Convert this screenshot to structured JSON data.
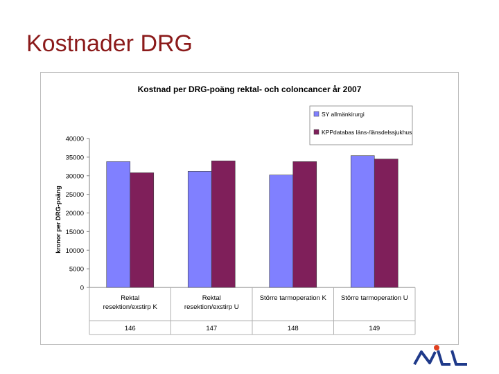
{
  "slide": {
    "title": "Kostnader DRG"
  },
  "chart_data": {
    "type": "bar",
    "title": "Kostnad per DRG-poäng rektal- och coloncancer år 2007",
    "ylabel": "kronor per DRG-poäng",
    "xlabel": "",
    "ylim": [
      0,
      40000
    ],
    "yticks": [
      0,
      5000,
      10000,
      15000,
      20000,
      25000,
      30000,
      35000,
      40000
    ],
    "categories": [
      "Rektal resektion/exstirp K",
      "Rektal resektion/exstirp U",
      "Större tarmoperation K",
      "Större tarmoperation U"
    ],
    "category_codes": [
      "146",
      "147",
      "148",
      "149"
    ],
    "series": [
      {
        "name": "SY allmänkirurgi",
        "color": "#8080ff",
        "values": [
          33800,
          31200,
          30200,
          35400
        ]
      },
      {
        "name": "KPPdatabas läns-/länsdelssjukhus",
        "color": "#7f1f5a",
        "values": [
          30800,
          34000,
          33800,
          34500
        ]
      }
    ],
    "grid": false,
    "legend": "top-right"
  },
  "logo": {
    "text": "NLL",
    "icon": "nll-logo"
  }
}
